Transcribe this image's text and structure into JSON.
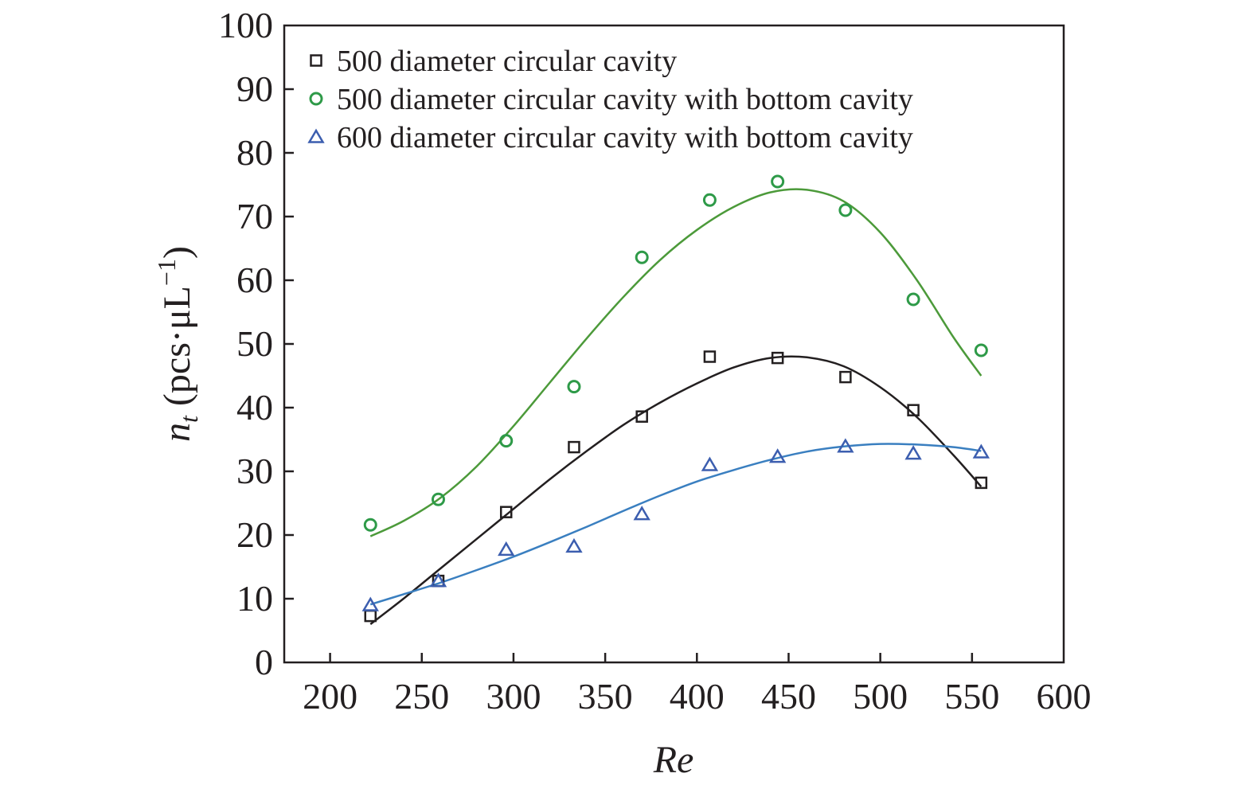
{
  "chart_data": {
    "type": "scatter",
    "xlabel": "Re",
    "ylabel": {
      "main": "n",
      "sub": "t",
      "unit": "(pcs·μL",
      "exp": "−1",
      "close": ")"
    },
    "xlim": [
      175,
      600
    ],
    "ylim": [
      0,
      100
    ],
    "xticks": [
      200,
      250,
      300,
      350,
      400,
      450,
      500,
      550,
      600
    ],
    "yticks": [
      0,
      10,
      20,
      30,
      40,
      50,
      60,
      70,
      80,
      90,
      100
    ],
    "grid": false,
    "legend_position": "top-left",
    "series": [
      {
        "name": "500 diameter circular cavity",
        "marker": "square",
        "color": "#231f20",
        "fit_color": "#231f20",
        "x": [
          222,
          259,
          296,
          333,
          370,
          407,
          444,
          481,
          518,
          555
        ],
        "y": [
          7.3,
          12.8,
          23.6,
          33.8,
          38.6,
          48.0,
          47.8,
          44.8,
          39.6,
          28.2
        ],
        "fit": {
          "x": [
            222,
            240,
            260,
            280,
            300,
            320,
            340,
            360,
            380,
            400,
            420,
            440,
            460,
            480,
            500,
            520,
            540,
            555
          ],
          "y": [
            6.0,
            10.0,
            14.7,
            19.4,
            24.1,
            28.8,
            33.2,
            37.3,
            40.8,
            43.8,
            46.3,
            47.8,
            47.9,
            46.5,
            43.2,
            38.5,
            32.5,
            27.6
          ]
        }
      },
      {
        "name": "500 diameter circular cavity with bottom cavity",
        "marker": "circle",
        "color": "#2e9a48",
        "fit_color": "#4c9a3a",
        "x": [
          222,
          259,
          296,
          333,
          370,
          407,
          444,
          481,
          518,
          555
        ],
        "y": [
          21.6,
          25.6,
          34.8,
          43.3,
          63.6,
          72.6,
          75.5,
          71.0,
          57.0,
          49.0
        ],
        "fit": {
          "x": [
            222,
            240,
            260,
            280,
            300,
            320,
            340,
            360,
            380,
            400,
            420,
            440,
            460,
            480,
            500,
            520,
            540,
            555
          ],
          "y": [
            19.8,
            22.2,
            25.8,
            30.8,
            37.1,
            44.0,
            50.9,
            57.4,
            63.2,
            67.9,
            71.5,
            73.8,
            74.2,
            72.4,
            67.5,
            60.0,
            51.0,
            45.0
          ]
        }
      },
      {
        "name": "600 diameter circular cavity with bottom cavity",
        "marker": "triangle",
        "color": "#3c5eaf",
        "fit_color": "#3a7fc0",
        "x": [
          222,
          259,
          296,
          333,
          370,
          407,
          444,
          481,
          518,
          555
        ],
        "y": [
          9.0,
          12.8,
          17.7,
          18.2,
          23.3,
          31.0,
          32.3,
          33.9,
          32.8,
          33.0
        ],
        "fit": {
          "x": [
            222,
            240,
            260,
            280,
            300,
            320,
            340,
            360,
            380,
            400,
            420,
            440,
            460,
            480,
            500,
            520,
            540,
            555
          ],
          "y": [
            9.1,
            10.7,
            12.5,
            14.5,
            16.6,
            18.9,
            21.3,
            23.8,
            26.2,
            28.4,
            30.2,
            31.8,
            33.1,
            33.9,
            34.3,
            34.2,
            33.8,
            33.2
          ]
        }
      }
    ]
  }
}
